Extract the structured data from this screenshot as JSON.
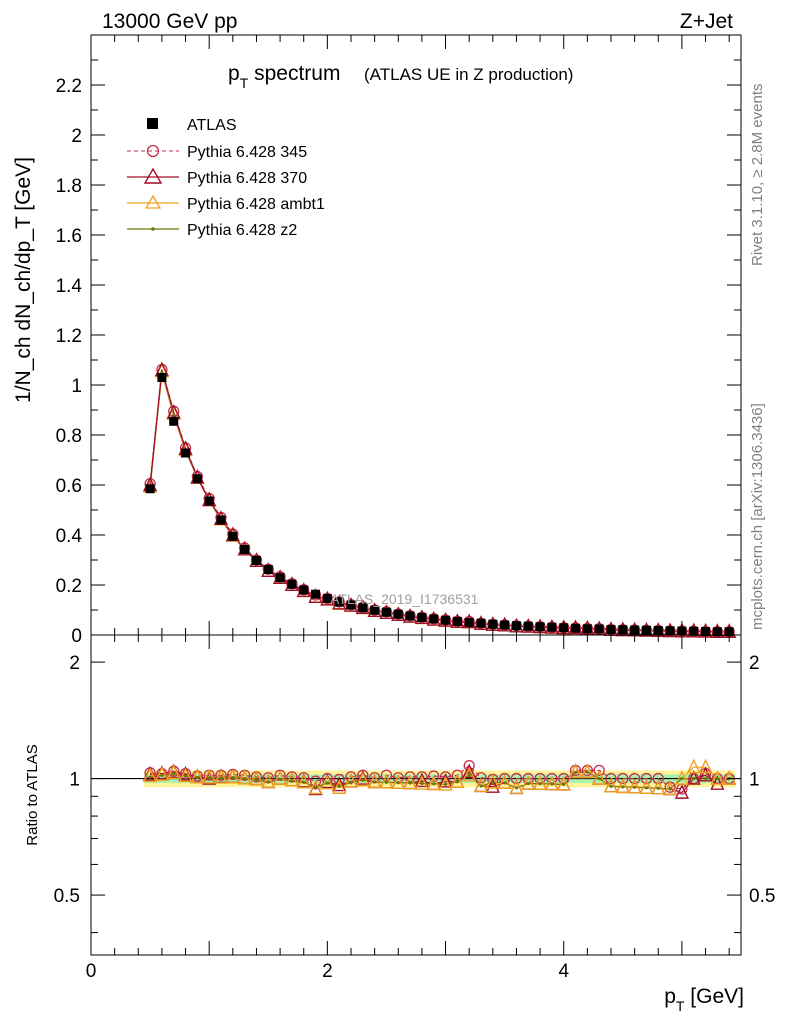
{
  "header": {
    "left": "13000 GeV pp",
    "right": "Z+Jet"
  },
  "side_text": {
    "rivet": "Rivet 3.1.10, ≥ 2.8M events",
    "mcplots": "mcplots.cern.ch [arXiv:1306.3436]"
  },
  "watermark": "ATLAS_2019_I1736531",
  "chart_data": [
    {
      "type": "line",
      "title_main": "p",
      "title_sub": "T",
      "title_rest": " spectrum",
      "title_note": "(ATLAS UE in Z production)",
      "ylabel": "1/N_ch dN_ch/dp_T [GeV]",
      "xlim": [
        0,
        5.5
      ],
      "ylim": [
        0,
        2.4
      ],
      "yticks": [
        "0",
        "0.2",
        "0.4",
        "0.6",
        "0.8",
        "1",
        "1.2",
        "1.4",
        "1.6",
        "1.8",
        "2",
        "2.2"
      ],
      "legend_position": "top-left",
      "x": [
        0.5,
        0.6,
        0.7,
        0.8,
        0.9,
        1.0,
        1.1,
        1.2,
        1.3,
        1.4,
        1.5,
        1.6,
        1.7,
        1.8,
        1.9,
        2.0,
        2.1,
        2.2,
        2.3,
        2.4,
        2.5,
        2.6,
        2.7,
        2.8,
        2.9,
        3.0,
        3.1,
        3.2,
        3.3,
        3.4,
        3.5,
        3.6,
        3.7,
        3.8,
        3.9,
        4.0,
        4.1,
        4.2,
        4.3,
        4.4,
        4.5,
        4.6,
        4.7,
        4.8,
        4.9,
        5.0,
        5.1,
        5.2,
        5.3,
        5.4
      ],
      "series": [
        {
          "name": "ATLAS",
          "marker": "square",
          "color": "#000000",
          "values": [
            0.585,
            1.03,
            0.855,
            0.728,
            0.625,
            0.536,
            0.46,
            0.395,
            0.342,
            0.298,
            0.262,
            0.229,
            0.203,
            0.18,
            0.163,
            0.146,
            0.132,
            0.12,
            0.109,
            0.099,
            0.091,
            0.083,
            0.076,
            0.07,
            0.064,
            0.059,
            0.054,
            0.05,
            0.047,
            0.043,
            0.04,
            0.037,
            0.035,
            0.033,
            0.031,
            0.029,
            0.027,
            0.025,
            0.024,
            0.022,
            0.021,
            0.02,
            0.019,
            0.018,
            0.017,
            0.016,
            0.015,
            0.014,
            0.013,
            0.013
          ]
        },
        {
          "name": "Pythia 6.428 345",
          "marker": "circle",
          "color": "#c0304a",
          "dashed": true,
          "values": [
            0.605,
            1.062,
            0.895,
            0.748,
            0.634,
            0.546,
            0.47,
            0.404,
            0.348,
            0.3,
            0.263,
            0.233,
            0.205,
            0.181,
            0.16,
            0.146,
            0.132,
            0.121,
            0.111,
            0.1,
            0.093,
            0.084,
            0.077,
            0.071,
            0.065,
            0.06,
            0.055,
            0.054,
            0.047,
            0.043,
            0.04,
            0.037,
            0.035,
            0.033,
            0.031,
            0.029,
            0.028,
            0.026,
            0.025,
            0.022,
            0.021,
            0.02,
            0.019,
            0.018,
            0.016,
            0.015,
            0.015,
            0.014,
            0.013,
            0.013
          ]
        },
        {
          "name": "Pythia 6.428 370",
          "marker": "triangle",
          "color": "#a0102a",
          "values": [
            0.6,
            1.06,
            0.89,
            0.745,
            0.63,
            0.54,
            0.465,
            0.4,
            0.343,
            0.297,
            0.257,
            0.229,
            0.201,
            0.177,
            0.153,
            0.143,
            0.127,
            0.118,
            0.109,
            0.097,
            0.089,
            0.081,
            0.074,
            0.069,
            0.062,
            0.058,
            0.053,
            0.052,
            0.045,
            0.041,
            0.039,
            0.035,
            0.034,
            0.032,
            0.03,
            0.028,
            0.028,
            0.026,
            0.024,
            0.021,
            0.02,
            0.019,
            0.018,
            0.017,
            0.016,
            0.015,
            0.015,
            0.014,
            0.013,
            0.013
          ]
        },
        {
          "name": "Pythia 6.428 ambt1",
          "marker": "triangle",
          "color": "#f0a020",
          "values": [
            0.595,
            1.055,
            0.885,
            0.74,
            0.63,
            0.54,
            0.463,
            0.398,
            0.343,
            0.297,
            0.257,
            0.229,
            0.201,
            0.176,
            0.154,
            0.142,
            0.125,
            0.118,
            0.108,
            0.097,
            0.089,
            0.081,
            0.074,
            0.068,
            0.062,
            0.057,
            0.053,
            0.051,
            0.045,
            0.042,
            0.039,
            0.035,
            0.034,
            0.032,
            0.03,
            0.028,
            0.028,
            0.026,
            0.024,
            0.021,
            0.02,
            0.019,
            0.018,
            0.017,
            0.016,
            0.016,
            0.016,
            0.015,
            0.013,
            0.013
          ]
        },
        {
          "name": "Pythia 6.428 z2",
          "marker": "dot",
          "color": "#6b7a00",
          "values": [
            0.59,
            1.05,
            0.88,
            0.738,
            0.628,
            0.538,
            0.461,
            0.397,
            0.342,
            0.296,
            0.257,
            0.228,
            0.2,
            0.176,
            0.155,
            0.142,
            0.126,
            0.117,
            0.108,
            0.097,
            0.089,
            0.081,
            0.074,
            0.068,
            0.062,
            0.057,
            0.053,
            0.051,
            0.045,
            0.042,
            0.039,
            0.035,
            0.034,
            0.032,
            0.03,
            0.028,
            0.028,
            0.026,
            0.024,
            0.021,
            0.02,
            0.019,
            0.018,
            0.017,
            0.016,
            0.016,
            0.015,
            0.014,
            0.013,
            0.013
          ]
        }
      ]
    },
    {
      "type": "line",
      "ylabel": "Ratio to ATLAS",
      "xlabel_main": "p",
      "xlabel_sub": "T",
      "xlabel_rest": " [GeV]",
      "xlim": [
        0,
        5.5
      ],
      "ylim": [
        0.35,
        2.35
      ],
      "log_y": true,
      "xticks": [
        "0",
        "2",
        "4"
      ],
      "yticks": [
        "0.5",
        "1",
        "2"
      ],
      "x": [
        0.5,
        0.6,
        0.7,
        0.8,
        0.9,
        1.0,
        1.1,
        1.2,
        1.3,
        1.4,
        1.5,
        1.6,
        1.7,
        1.8,
        1.9,
        2.0,
        2.1,
        2.2,
        2.3,
        2.4,
        2.5,
        2.6,
        2.7,
        2.8,
        2.9,
        3.0,
        3.1,
        3.2,
        3.3,
        3.4,
        3.5,
        3.6,
        3.7,
        3.8,
        3.9,
        4.0,
        4.1,
        4.2,
        4.3,
        4.4,
        4.5,
        4.6,
        4.7,
        4.8,
        4.9,
        5.0,
        5.1,
        5.2,
        5.3,
        5.4
      ],
      "band_outer": [
        0.05,
        0.05,
        0.05,
        0.05,
        0.05,
        0.05,
        0.05,
        0.05,
        0.05,
        0.05,
        0.05,
        0.05,
        0.05,
        0.05,
        0.05,
        0.05,
        0.05,
        0.05,
        0.05,
        0.05,
        0.05,
        0.05,
        0.05,
        0.05,
        0.05,
        0.05,
        0.05,
        0.05,
        0.05,
        0.05,
        0.05,
        0.05,
        0.05,
        0.05,
        0.05,
        0.05,
        0.05,
        0.05,
        0.05,
        0.05,
        0.05,
        0.05,
        0.05,
        0.05,
        0.05,
        0.05,
        0.05,
        0.05,
        0.05,
        0.05
      ],
      "band_inner": [
        0.025,
        0.025,
        0.025,
        0.025,
        0.025,
        0.025,
        0.025,
        0.025,
        0.025,
        0.025,
        0.025,
        0.025,
        0.025,
        0.025,
        0.025,
        0.025,
        0.025,
        0.025,
        0.025,
        0.025,
        0.025,
        0.025,
        0.025,
        0.025,
        0.025,
        0.025,
        0.025,
        0.025,
        0.025,
        0.025,
        0.025,
        0.025,
        0.025,
        0.025,
        0.025,
        0.025,
        0.025,
        0.025,
        0.025,
        0.025,
        0.025,
        0.025,
        0.025,
        0.025,
        0.025,
        0.025,
        0.025,
        0.025,
        0.025,
        0.025
      ],
      "series": [
        {
          "name": "Pythia 6.428 345",
          "marker": "circle",
          "color": "#c0304a",
          "dashed": true,
          "values": [
            1.035,
            1.03,
            1.045,
            1.03,
            1.015,
            1.02,
            1.02,
            1.025,
            1.02,
            1.01,
            1.005,
            1.02,
            1.01,
            1.005,
            0.985,
            1.0,
            0.995,
            1.01,
            1.02,
            1.005,
            1.02,
            1.005,
            1.01,
            1.01,
            1.015,
            1.01,
            1.02,
            1.08,
            1.005,
            0.995,
            1.0,
            1.0,
            1.0,
            1.0,
            1.0,
            1.0,
            1.05,
            1.05,
            1.05,
            1.0,
            1.0,
            1.0,
            1.0,
            1.0,
            0.95,
            0.94,
            1.0,
            1.03,
            1.0,
            1.0
          ]
        },
        {
          "name": "Pythia 6.428 370",
          "marker": "triangle",
          "color": "#a0102a",
          "values": [
            1.025,
            1.03,
            1.04,
            1.025,
            1.01,
            1.0,
            1.01,
            1.01,
            1.003,
            0.997,
            0.98,
            1.0,
            0.99,
            0.983,
            0.94,
            0.98,
            0.962,
            0.983,
            1.0,
            0.98,
            0.978,
            0.976,
            0.974,
            0.986,
            0.969,
            0.983,
            0.981,
            1.04,
            0.957,
            0.953,
            0.975,
            0.946,
            0.971,
            0.97,
            0.968,
            0.966,
            1.04,
            1.04,
            1.0,
            0.955,
            0.952,
            0.95,
            0.947,
            0.944,
            0.94,
            0.92,
            1.0,
            1.02,
            0.97,
            1.0
          ]
        },
        {
          "name": "Pythia 6.428 ambt1",
          "marker": "triangle",
          "color": "#f0a020",
          "values": [
            1.017,
            1.024,
            1.035,
            1.016,
            1.008,
            1.007,
            1.007,
            1.008,
            1.003,
            0.997,
            0.98,
            1.0,
            0.99,
            0.978,
            0.945,
            0.973,
            0.947,
            0.983,
            0.991,
            0.98,
            0.978,
            0.976,
            0.974,
            0.971,
            0.969,
            0.966,
            0.981,
            1.02,
            0.957,
            0.977,
            0.975,
            0.946,
            0.971,
            0.97,
            0.968,
            0.966,
            1.04,
            1.04,
            1.0,
            0.955,
            0.952,
            0.95,
            0.947,
            0.944,
            0.94,
            1.0,
            1.07,
            1.07,
            1.0,
            1.0
          ]
        },
        {
          "name": "Pythia 6.428 z2",
          "marker": "dot",
          "color": "#6b7a00",
          "values": [
            1.008,
            1.019,
            1.029,
            1.014,
            1.005,
            1.004,
            1.002,
            1.005,
            1.0,
            0.993,
            0.98,
            0.996,
            0.985,
            0.978,
            0.951,
            0.973,
            0.955,
            0.975,
            0.991,
            0.98,
            0.978,
            0.976,
            0.974,
            0.971,
            0.969,
            0.966,
            0.981,
            1.02,
            0.957,
            0.977,
            0.975,
            0.946,
            0.971,
            0.97,
            0.968,
            0.966,
            1.037,
            1.04,
            1.0,
            0.955,
            0.952,
            0.95,
            0.947,
            0.944,
            0.94,
            1.0,
            1.0,
            1.0,
            1.0,
            1.0
          ]
        }
      ]
    }
  ]
}
